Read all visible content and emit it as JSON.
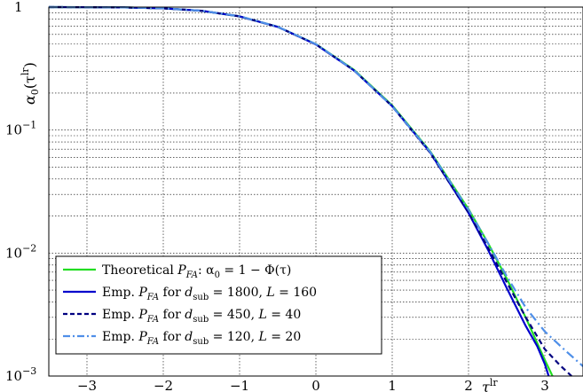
{
  "chart_data": {
    "type": "line",
    "title": "",
    "xlabel": "τ^lr",
    "ylabel": "α0(τ^lr)",
    "xlim": [
      -3.5,
      3.5
    ],
    "ylim": [
      0.001,
      1
    ],
    "yscale": "log",
    "grid": true,
    "legend_position": "lower-left",
    "x_ticks": [
      -3,
      -2,
      -1,
      0,
      1,
      2,
      3
    ],
    "x_tick_labels": [
      "−3",
      "−2",
      "−1",
      "0",
      "1",
      "2",
      "3"
    ],
    "y_ticks": [
      0.001,
      0.01,
      0.1,
      1
    ],
    "y_tick_labels": [
      {
        "base": "10",
        "exp": "−3"
      },
      {
        "base": "10",
        "exp": "−2"
      },
      {
        "base": "10",
        "exp": "−1"
      },
      {
        "base": "1",
        "exp": ""
      }
    ],
    "series": [
      {
        "name": "Theoretical P_FA: α0 = 1 − Φ(τ)",
        "legend_parts": [
          "Theoretical ",
          "P",
          "FA",
          ": α",
          "0",
          " = 1 − Φ(τ)"
        ],
        "color": "#22dd22",
        "dash": "solid",
        "x": [
          -3.5,
          -3,
          -2.5,
          -2,
          -1.5,
          -1,
          -0.5,
          0,
          0.5,
          1,
          1.5,
          2,
          2.25,
          2.5,
          2.75,
          3,
          3.1
        ],
        "y": [
          0.99977,
          0.99865,
          0.99379,
          0.97725,
          0.93319,
          0.84134,
          0.69146,
          0.5,
          0.30854,
          0.15866,
          0.06681,
          0.02275,
          0.01222,
          0.00621,
          0.00298,
          0.00135,
          0.001
        ]
      },
      {
        "name": "Emp. P_FA for d_sub = 1800, L = 160",
        "legend_parts": [
          "Emp. ",
          "P",
          "FA",
          " for ",
          "d",
          "sub",
          " = 1800, ",
          "L",
          " = 160"
        ],
        "color": "#0000cc",
        "dash": "solid",
        "x": [
          -3.5,
          -3,
          -2.5,
          -2,
          -1.5,
          -1,
          -0.5,
          0,
          0.5,
          1,
          1.5,
          2,
          2.25,
          2.5,
          2.75,
          2.9,
          3.0,
          3.05
        ],
        "y": [
          0.9998,
          0.9987,
          0.994,
          0.9775,
          0.9335,
          0.841,
          0.69,
          0.497,
          0.305,
          0.1565,
          0.0655,
          0.0212,
          0.0108,
          0.0052,
          0.00255,
          0.00175,
          0.00125,
          0.001
        ]
      },
      {
        "name": "Emp. P_FA for d_sub = 450, L = 40",
        "legend_parts": [
          "Emp. ",
          "P",
          "FA",
          " for ",
          "d",
          "sub",
          " = 450, ",
          "L",
          " = 40"
        ],
        "color": "#000080",
        "dash": "dashed",
        "x": [
          -3.5,
          -3,
          -2.5,
          -2,
          -1.5,
          -1,
          -0.5,
          0,
          0.5,
          1,
          1.5,
          2,
          2.25,
          2.5,
          2.75,
          3,
          3.2,
          3.35
        ],
        "y": [
          0.9998,
          0.9986,
          0.9938,
          0.977,
          0.933,
          0.8405,
          0.6905,
          0.4975,
          0.3055,
          0.156,
          0.065,
          0.0213,
          0.0112,
          0.0058,
          0.003,
          0.00165,
          0.00122,
          0.001
        ]
      },
      {
        "name": "Emp. P_FA for d_sub = 120, L = 20",
        "legend_parts": [
          "Emp. ",
          "P",
          "FA",
          " for ",
          "d",
          "sub",
          " = 120, ",
          "L",
          " = 20"
        ],
        "color": "#4f8fe8",
        "dash": "dashdot",
        "x": [
          -3.5,
          -3,
          -2.5,
          -2,
          -1.5,
          -1,
          -0.5,
          0,
          0.5,
          1,
          1.5,
          2,
          2.25,
          2.5,
          2.75,
          3,
          3.25,
          3.5
        ],
        "y": [
          0.9998,
          0.9987,
          0.9942,
          0.978,
          0.9345,
          0.843,
          0.693,
          0.5,
          0.306,
          0.156,
          0.0662,
          0.0225,
          0.0122,
          0.0065,
          0.0036,
          0.0023,
          0.00165,
          0.0012
        ]
      }
    ]
  }
}
